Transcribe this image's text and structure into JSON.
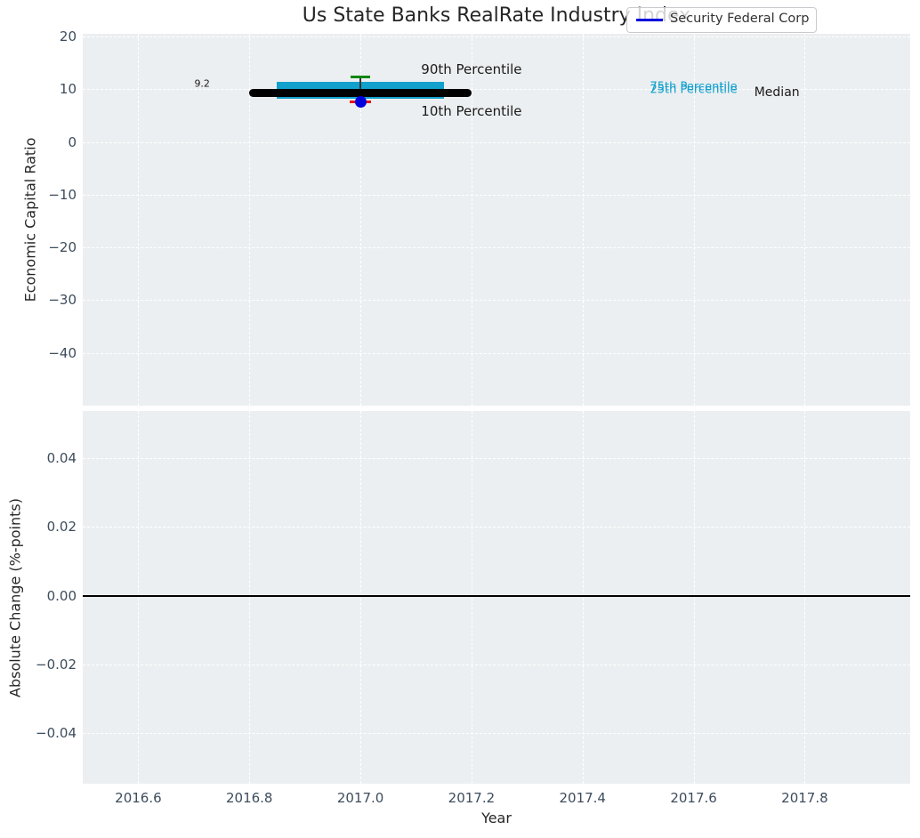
{
  "chart_data": {
    "type": "boxplot",
    "title": "Us State Banks RealRate Industry Index",
    "xlabel": "Year",
    "xlim": [
      2016.5,
      2017.99
    ],
    "xticks": [
      {
        "value": 2016.6,
        "label": "2016.6"
      },
      {
        "value": 2016.8,
        "label": "2016.8"
      },
      {
        "value": 2017.0,
        "label": "2017.0"
      },
      {
        "value": 2017.2,
        "label": "2017.2"
      },
      {
        "value": 2017.4,
        "label": "2017.4"
      },
      {
        "value": 2017.6,
        "label": "2017.6"
      },
      {
        "value": 2017.8,
        "label": "2017.8"
      }
    ],
    "legend": {
      "label": "Security Federal Corp",
      "position": "upper right"
    },
    "grid": "white dashed on light gray background",
    "top_panel": {
      "ylabel": "Economic Capital Ratio",
      "ylim": [
        -50,
        20.5
      ],
      "yticks": [
        {
          "value": 20,
          "label": "20"
        },
        {
          "value": 10,
          "label": "10"
        },
        {
          "value": 0,
          "label": "0"
        },
        {
          "value": -10,
          "label": "−10"
        },
        {
          "value": -20,
          "label": "−20"
        },
        {
          "value": -30,
          "label": "−30"
        },
        {
          "value": -40,
          "label": "−40"
        }
      ],
      "box": {
        "x": 2017.0,
        "p90": 12.3,
        "p75": 11.4,
        "median": 9.2,
        "p25": 8.2,
        "p10": 7.6,
        "company_value": 7.6,
        "box_x_range": [
          2016.85,
          2017.15
        ],
        "median_x_range": [
          2016.8,
          2017.2
        ],
        "cap_halfwidth": 0.017
      },
      "annotations": [
        {
          "text": "9.2",
          "x": 2016.715,
          "y": 11.1,
          "size": 11,
          "color": "#1a1a1a"
        },
        {
          "text": "90th Percentile",
          "x": 2017.2,
          "y": 13.8,
          "size": 15,
          "color": "#1a1a1a"
        },
        {
          "text": "10th Percentile",
          "x": 2017.2,
          "y": 5.8,
          "size": 15,
          "color": "#1a1a1a"
        },
        {
          "text": "75th Percentile",
          "x": 2017.6,
          "y": 10.45,
          "size": 13,
          "color": "#12a0cd"
        },
        {
          "text": "25th Percentile",
          "x": 2017.6,
          "y": 9.95,
          "size": 13,
          "color": "#12a0cd"
        },
        {
          "text": "Median",
          "x": 2017.75,
          "y": 9.4,
          "size": 14,
          "color": "#1a1a1a"
        }
      ]
    },
    "bottom_panel": {
      "ylabel": "Absolute Change (%-points)",
      "ylim": [
        -0.0548,
        0.0538
      ],
      "yticks": [
        {
          "value": 0.04,
          "label": "0.04"
        },
        {
          "value": 0.02,
          "label": "0.02"
        },
        {
          "value": 0.0,
          "label": "0.00"
        },
        {
          "value": -0.02,
          "label": "−0.02"
        },
        {
          "value": -0.04,
          "label": "−0.04"
        }
      ],
      "zero_line_y": 0.0
    }
  },
  "colors": {
    "plot_bg": "#eceff1",
    "grid": "#ffffff",
    "tick_label": "#3d4c5c",
    "box_fill": "#12a0cd",
    "whisker_top_cap": "#0d870d",
    "whisker_bottom_cap": "#e81212",
    "whisker_line": "#333333",
    "median_line": "#000000",
    "company_marker": "#0000dd",
    "legend_line": "#0000dd",
    "zero_line": "#000000"
  }
}
